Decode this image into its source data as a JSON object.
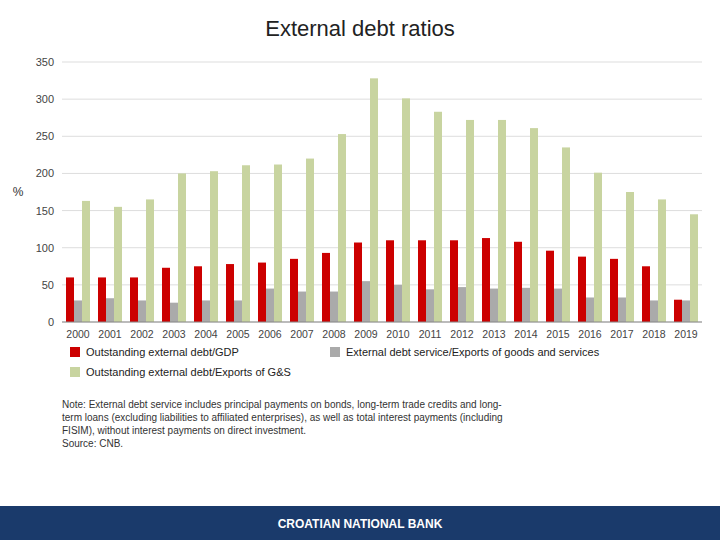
{
  "chart_data": {
    "type": "bar",
    "title": "External debt ratios",
    "categories": [
      "2000",
      "2001",
      "2002",
      "2003",
      "2004",
      "2005",
      "2006",
      "2007",
      "2008",
      "2009",
      "2010",
      "2011",
      "2012",
      "2013",
      "2014",
      "2015",
      "2016",
      "2017",
      "2018",
      "2019"
    ],
    "series": [
      {
        "name": "Outstanding external debt/GDP",
        "color": "#cc0000",
        "values": [
          60,
          60,
          60,
          73,
          75,
          78,
          80,
          85,
          93,
          107,
          110,
          110,
          110,
          113,
          108,
          96,
          88,
          85,
          75,
          30
        ]
      },
      {
        "name": "External debt service/Exports of goods and services",
        "color": "#aaaaaa",
        "values": [
          29,
          32,
          29,
          26,
          29,
          29,
          45,
          41,
          41,
          55,
          50,
          44,
          47,
          45,
          46,
          45,
          33,
          33,
          29,
          29
        ]
      },
      {
        "name": "Outstanding external debt/Exports of G&S",
        "color": "#c8d4a0",
        "values": [
          163,
          155,
          165,
          200,
          203,
          211,
          212,
          220,
          253,
          328,
          301,
          283,
          272,
          272,
          261,
          235,
          201,
          175,
          165,
          145
        ]
      }
    ],
    "ylabel": "%",
    "ylim": [
      0,
      350
    ],
    "yticks": [
      0,
      50,
      100,
      150,
      200,
      250,
      300,
      350
    ],
    "grid": true,
    "legend": "bottom",
    "annotations": [
      "Note: External debt service includes principal payments on bonds, long-term trade credits and  long-\nterm loans (excluding liabilities to affiliated enterprises), as well as total interest payments (including\nFISIM), without interest payments on direct investment.\nSource: CNB.",
      "CROATIAN NATIONAL BANK"
    ]
  }
}
